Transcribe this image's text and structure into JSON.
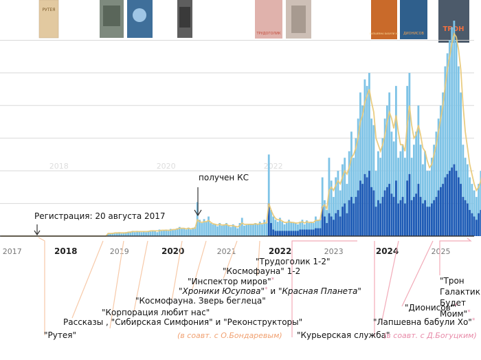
{
  "chart_data": {
    "type": "bar",
    "xlim": [
      2016.9,
      2025.75
    ],
    "ylim": [
      0,
      330
    ],
    "x_ticks": [
      {
        "label": "2017",
        "x": 2017.0,
        "major": false
      },
      {
        "label": "2018",
        "x": 2018.0,
        "major": true
      },
      {
        "label": "2019",
        "x": 2019.0,
        "major": false
      },
      {
        "label": "2020",
        "x": 2020.0,
        "major": true
      },
      {
        "label": "2021",
        "x": 2021.0,
        "major": false
      },
      {
        "label": "2022",
        "x": 2022.0,
        "major": true
      },
      {
        "label": "2023",
        "x": 2023.0,
        "major": false
      },
      {
        "label": "2024",
        "x": 2024.0,
        "major": true
      },
      {
        "label": "2025",
        "x": 2025.0,
        "major": false
      }
    ],
    "ghost_labels": [
      {
        "label": "2018",
        "x": 2018.0
      },
      {
        "label": "2020",
        "x": 2020.0
      },
      {
        "label": "2022",
        "x": 2022.0
      }
    ],
    "gridlines_y": [
      50,
      100,
      150,
      200,
      250,
      300
    ],
    "colors": {
      "total_bar": "#7ec3e6",
      "sub_bar": "#1e5ab5",
      "avg_line": "#e8c97a",
      "baseline": "#333333",
      "grid": "#d8d8d8",
      "pointer_light": "#f7c9a8",
      "pointer_pink": "#f2aab8",
      "coauthor_orange": "#f0a070",
      "coauthor_pink": "#e88aa8",
      "star": "#e88aa8"
    },
    "total_values": [
      0,
      0,
      0,
      0,
      0,
      0,
      0,
      0,
      0,
      0,
      0,
      0,
      0,
      0,
      0,
      0,
      0,
      0,
      0,
      0,
      0,
      0,
      0,
      0,
      0,
      0,
      0,
      0,
      0,
      0,
      0,
      0,
      0,
      0,
      0,
      0,
      0,
      0,
      0,
      0,
      0,
      0,
      0,
      0,
      0,
      0,
      0,
      0,
      4,
      4,
      5,
      4,
      5,
      6,
      4,
      5,
      6,
      6,
      7,
      8,
      6,
      8,
      7,
      6,
      7,
      6,
      8,
      7,
      9,
      8,
      6,
      10,
      8,
      9,
      10,
      8,
      11,
      9,
      10,
      12,
      14,
      11,
      12,
      10,
      13,
      10,
      12,
      14,
      52,
      25,
      20,
      26,
      22,
      30,
      20,
      18,
      18,
      15,
      20,
      16,
      18,
      20,
      16,
      14,
      18,
      15,
      12,
      20,
      28,
      16,
      17,
      18,
      19,
      18,
      20,
      18,
      22,
      18,
      25,
      20,
      125,
      40,
      30,
      25,
      22,
      28,
      22,
      18,
      20,
      25,
      22,
      20,
      20,
      18,
      22,
      25,
      18,
      24,
      20,
      22,
      20,
      30,
      25,
      25,
      90,
      55,
      40,
      120,
      85,
      60,
      90,
      100,
      70,
      110,
      120,
      80,
      130,
      160,
      120,
      150,
      180,
      220,
      200,
      240,
      230,
      250,
      180,
      170,
      100,
      130,
      120,
      150,
      180,
      200,
      220,
      160,
      145,
      230,
      120,
      130,
      140,
      120,
      230,
      250,
      120,
      140,
      160,
      200,
      140,
      110,
      130,
      100,
      100,
      120,
      140,
      160,
      180,
      200,
      220,
      260,
      280,
      300,
      320,
      330,
      300,
      260,
      220,
      140,
      120,
      110,
      90,
      80,
      70,
      60,
      80,
      100,
      120,
      140,
      160,
      140,
      120,
      100,
      80,
      60,
      50,
      40,
      40,
      30,
      90,
      40
    ],
    "sub_values": [
      0,
      0,
      0,
      0,
      0,
      0,
      0,
      0,
      0,
      0,
      0,
      0,
      0,
      0,
      0,
      0,
      0,
      0,
      0,
      0,
      0,
      0,
      0,
      0,
      0,
      0,
      0,
      0,
      0,
      0,
      0,
      0,
      0,
      0,
      0,
      0,
      0,
      0,
      0,
      0,
      0,
      0,
      0,
      0,
      0,
      0,
      0,
      0,
      0,
      0,
      0,
      0,
      0,
      0,
      0,
      0,
      0,
      0,
      0,
      0,
      0,
      0,
      0,
      0,
      0,
      0,
      0,
      0,
      0,
      0,
      0,
      0,
      0,
      0,
      0,
      0,
      0,
      0,
      0,
      0,
      0,
      0,
      0,
      0,
      0,
      0,
      0,
      0,
      0,
      0,
      0,
      0,
      0,
      0,
      0,
      0,
      0,
      0,
      0,
      0,
      0,
      0,
      0,
      0,
      0,
      0,
      0,
      0,
      0,
      0,
      0,
      0,
      0,
      0,
      0,
      0,
      0,
      0,
      0,
      0,
      50,
      20,
      10,
      8,
      8,
      8,
      8,
      8,
      8,
      8,
      8,
      8,
      8,
      8,
      10,
      10,
      10,
      10,
      10,
      10,
      10,
      12,
      12,
      12,
      45,
      30,
      20,
      35,
      30,
      25,
      35,
      40,
      30,
      45,
      50,
      35,
      55,
      60,
      50,
      60,
      70,
      85,
      80,
      95,
      90,
      100,
      75,
      70,
      45,
      55,
      50,
      60,
      70,
      75,
      80,
      65,
      60,
      85,
      50,
      55,
      60,
      50,
      85,
      95,
      55,
      60,
      65,
      80,
      60,
      50,
      55,
      45,
      45,
      50,
      55,
      60,
      70,
      75,
      80,
      90,
      95,
      100,
      105,
      110,
      100,
      90,
      80,
      60,
      55,
      50,
      40,
      35,
      30,
      25,
      35,
      40,
      50,
      55,
      60,
      55,
      50,
      45,
      35,
      30,
      25,
      20,
      20,
      15,
      40,
      20
    ],
    "avg_values": [
      0,
      0,
      0,
      0,
      0,
      0,
      0,
      0,
      0,
      0,
      0,
      0,
      0,
      0,
      0,
      0,
      0,
      0,
      0,
      0,
      0,
      0,
      0,
      0,
      0,
      0,
      0,
      0,
      0,
      0,
      0,
      0,
      0,
      0,
      0,
      0,
      0,
      0,
      0,
      0,
      0,
      0,
      0,
      0,
      0,
      0,
      0,
      0,
      4,
      4,
      4,
      5,
      5,
      5,
      5,
      5,
      5,
      6,
      6,
      7,
      7,
      7,
      7,
      7,
      7,
      7,
      7,
      8,
      8,
      8,
      8,
      8,
      9,
      9,
      9,
      9,
      9,
      10,
      10,
      11,
      12,
      12,
      12,
      11,
      12,
      11,
      12,
      12,
      25,
      22,
      21,
      22,
      22,
      24,
      21,
      19,
      18,
      17,
      18,
      17,
      17,
      18,
      16,
      16,
      16,
      15,
      14,
      16,
      20,
      18,
      18,
      18,
      18,
      18,
      19,
      18,
      19,
      19,
      20,
      20,
      50,
      40,
      32,
      27,
      25,
      25,
      23,
      21,
      21,
      22,
      21,
      21,
      20,
      20,
      21,
      22,
      20,
      22,
      21,
      21,
      21,
      24,
      24,
      25,
      45,
      48,
      42,
      70,
      75,
      70,
      78,
      85,
      80,
      90,
      100,
      95,
      105,
      120,
      125,
      135,
      150,
      175,
      185,
      205,
      215,
      225,
      205,
      190,
      150,
      140,
      130,
      140,
      155,
      175,
      190,
      180,
      165,
      185,
      160,
      140,
      140,
      130,
      170,
      200,
      170,
      150,
      155,
      170,
      155,
      135,
      130,
      115,
      105,
      110,
      125,
      140,
      160,
      180,
      200,
      230,
      255,
      275,
      295,
      310,
      305,
      285,
      255,
      200,
      160,
      135,
      110,
      95,
      80,
      70,
      75,
      85,
      105,
      125,
      140,
      140,
      130,
      115,
      95,
      75,
      60,
      50,
      45,
      38,
      55,
      45
    ],
    "annotations": {
      "registration": "Регистрация: 20 августа 2017",
      "ks": "получен КС",
      "rutea": "\"Рутея\"",
      "stories": "Рассказы , \"Сибирская Симфония\" и \"Реконструкторы\"",
      "korp": "\"Корпорация любит нас\"",
      "kosmo_zver": "\"Космофауна. Зверь беглеца\"",
      "khroniki_a": "\"Хроники Юсупова\"",
      "khroniki_b": "\"Красная Планета\"",
      "khroniki_and": " и ",
      "inspektor": "\"Инспектор миров\"",
      "kosmo12": "\"Космофауна\" 1-2",
      "trudogolik": "\"Трудоголик 1-2\"",
      "coauthor_1": "(в соавт. с О.Бондаревым)",
      "kurier": "\"Курьерская служба\"",
      "lapshevna": "\"Лапшевна бабули Хо\"",
      "coauthor_2": "(в соавт. с Д.Богуцким)",
      "dionisov": "\"Дионисов\"",
      "tron_lines": [
        "\"Трон",
        "Галактики",
        "Будет",
        "Моим\""
      ],
      "star": "*"
    },
    "books": [
      {
        "label": "РУТЕЯ"
      },
      {
        "label": ""
      },
      {
        "label": ""
      },
      {
        "label": ""
      },
      {
        "label": ""
      },
      {
        "label": ""
      },
      {
        "label": "ТРУДОГОЛИК"
      },
      {
        "label": "ЛАПШЕВНА БАБУЛИ ХО"
      },
      {
        "label": "ДИОНИСОВ"
      },
      {
        "label": "ТРОН"
      }
    ]
  }
}
